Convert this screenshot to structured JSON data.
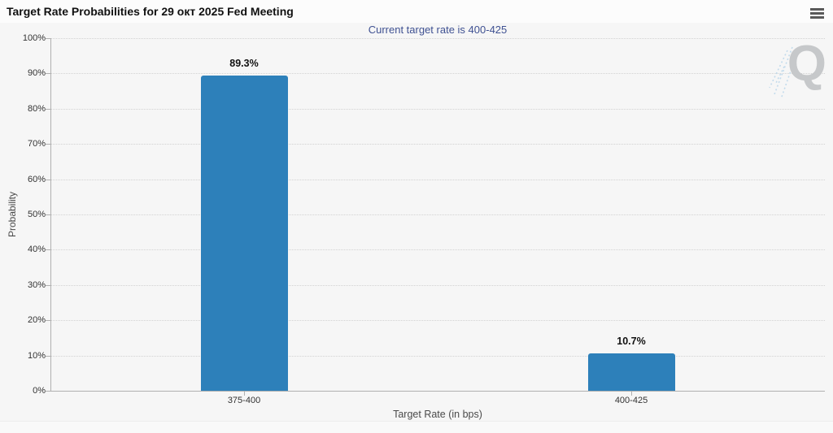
{
  "header": {
    "menu_icon": "hamburger-menu-icon"
  },
  "chart_data": {
    "type": "bar",
    "title": "Target Rate Probabilities for 29 окт 2025 Fed Meeting",
    "subtitle": "Current target rate is 400-425",
    "categories": [
      "375-400",
      "400-425"
    ],
    "values": [
      89.3,
      10.7
    ],
    "value_labels": [
      "89.3%",
      "10.7%"
    ],
    "xlabel": "Target Rate (in bps)",
    "ylabel": "Probability",
    "ylim": [
      0,
      100
    ],
    "ytick_step": 10,
    "ytick_labels": [
      "0%",
      "10%",
      "20%",
      "30%",
      "40%",
      "50%",
      "60%",
      "70%",
      "80%",
      "90%",
      "100%"
    ],
    "grid": "horizontal-dotted",
    "legend": "none",
    "bar_color": "#2d80ba",
    "subtitle_color": "#3f5192",
    "label_color": "#111111"
  },
  "watermark": {
    "letter": "Q"
  }
}
